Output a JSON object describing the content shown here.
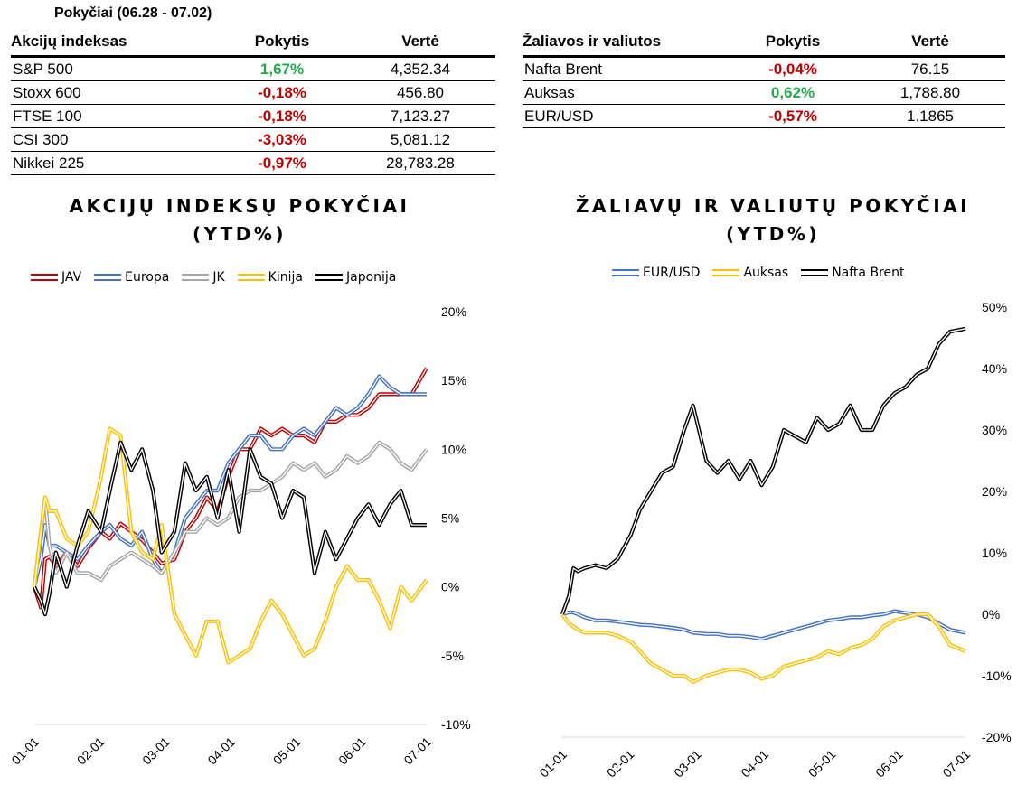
{
  "header": {
    "period": "Pokyčiai (06.28 - 07.02)"
  },
  "tables": [
    {
      "headers": [
        "Akcijų indeksas",
        "Pokytis",
        "Vertė"
      ],
      "rows": [
        {
          "name": "S&P 500",
          "change": "1,67%",
          "dir": "pos",
          "value": "4,352.34"
        },
        {
          "name": "Stoxx 600",
          "change": "-0,18%",
          "dir": "neg",
          "value": "456.80"
        },
        {
          "name": "FTSE 100",
          "change": "-0,18%",
          "dir": "neg",
          "value": "7,123.27"
        },
        {
          "name": "CSI 300",
          "change": "-3,03%",
          "dir": "neg",
          "value": "5,081.12"
        },
        {
          "name": "Nikkei 225",
          "change": "-0,97%",
          "dir": "neg",
          "value": "28,783.28"
        }
      ]
    },
    {
      "headers": [
        "Žaliavos ir valiutos",
        "Pokytis",
        "Vertė"
      ],
      "rows": [
        {
          "name": "Nafta Brent",
          "change": "-0,04%",
          "dir": "neg",
          "value": "76.15"
        },
        {
          "name": "Auksas",
          "change": "0,62%",
          "dir": "pos",
          "value": "1,788.80"
        },
        {
          "name": "EUR/USD",
          "change": "-0,57%",
          "dir": "neg",
          "value": "1.1865"
        }
      ]
    }
  ],
  "colors": {
    "positive": "#22a84a",
    "negative": "#c00000"
  },
  "chart_data": [
    {
      "type": "line",
      "title_line1": "AKCIJŲ INDEKSŲ POKYČIAI",
      "title_line2": "(YTD%)",
      "x_ticks": [
        "01-01",
        "02-01",
        "03-01",
        "04-01",
        "05-01",
        "06-01",
        "07-01"
      ],
      "y_ticks": [
        "20%",
        "15%",
        "10%",
        "5%",
        "0%",
        "-5%",
        "-10%"
      ],
      "ylim": [
        -10,
        20
      ],
      "x": [
        0,
        3,
        5,
        7,
        10,
        15,
        20,
        25,
        31,
        35,
        40,
        45,
        50,
        55,
        59,
        65,
        70,
        75,
        80,
        85,
        90,
        95,
        100,
        105,
        110,
        115,
        120,
        125,
        130,
        135,
        140,
        145,
        150,
        155,
        160,
        165,
        170,
        175,
        182
      ],
      "grid": false,
      "legend_position": "top",
      "series": [
        {
          "name": "JAV",
          "color": "#c00000",
          "values": [
            0,
            -1.5,
            2,
            2.2,
            1.5,
            2.5,
            1.5,
            2.8,
            4,
            3.5,
            4.6,
            4,
            3.4,
            2.5,
            1.7,
            2,
            4,
            5,
            6.5,
            5.5,
            8,
            10,
            10,
            11.5,
            11,
            11.5,
            11,
            11,
            10.5,
            12,
            12,
            12.5,
            12.5,
            13,
            14,
            14,
            14,
            14,
            15.9
          ]
        },
        {
          "name": "Europa",
          "color": "#4472c4",
          "values": [
            0,
            2,
            4.5,
            3,
            3,
            2.5,
            2,
            3,
            4,
            4.5,
            3.5,
            3,
            4,
            2,
            1,
            2.5,
            5,
            6,
            7,
            7,
            9,
            10,
            11,
            11,
            10,
            10,
            11,
            11.5,
            11,
            12,
            13,
            12.5,
            13,
            14,
            15.3,
            14.5,
            14,
            14,
            14
          ]
        },
        {
          "name": "JK",
          "color": "#a6a6a6",
          "values": [
            0,
            4,
            6.5,
            3,
            1,
            2.5,
            1,
            1,
            0.5,
            1.5,
            2,
            2.5,
            2,
            1.5,
            1,
            2.5,
            4,
            4,
            5,
            4.5,
            5,
            6.5,
            7,
            7,
            7.5,
            8,
            9,
            8.5,
            9,
            8,
            8.5,
            9.5,
            9,
            9.5,
            10.5,
            10,
            9,
            8.5,
            10
          ]
        },
        {
          "name": "Kinija",
          "color": "#ffc000",
          "values": [
            0,
            4,
            6.5,
            5.5,
            5.5,
            3.5,
            3,
            4,
            8,
            11.5,
            11,
            4,
            2.5,
            2,
            4.5,
            -2,
            -3.5,
            -5,
            -2.5,
            -2.5,
            -5.5,
            -5,
            -4.5,
            -2.5,
            -1,
            -2,
            -3.5,
            -5,
            -4.5,
            -2.5,
            0,
            1.5,
            0.5,
            0.5,
            -1,
            -3,
            0,
            -1,
            0.5
          ]
        },
        {
          "name": "Japonija",
          "color": "#000000",
          "values": [
            0,
            -1,
            -2,
            -0.5,
            2.5,
            0,
            3,
            5.5,
            4,
            7,
            10.5,
            8.5,
            10,
            7,
            2.5,
            4,
            9,
            7,
            8,
            5,
            8.5,
            4,
            10,
            8,
            7.5,
            5,
            7,
            6.5,
            1,
            4,
            2,
            3.5,
            5,
            6,
            4.5,
            6,
            7,
            4.5,
            4.5
          ]
        }
      ]
    },
    {
      "type": "line",
      "title_line1": "ŽALIAVŲ IR VALIUTŲ POKYČIAI",
      "title_line2": "(YTD%)",
      "x_ticks": [
        "01-01",
        "02-01",
        "03-01",
        "04-01",
        "05-01",
        "06-01",
        "07-01"
      ],
      "y_ticks": [
        "50%",
        "40%",
        "30%",
        "20%",
        "10%",
        "0%",
        "-10%",
        "-20%"
      ],
      "ylim": [
        -20,
        50
      ],
      "x": [
        0,
        3,
        5,
        7,
        10,
        15,
        20,
        25,
        31,
        35,
        40,
        45,
        50,
        55,
        59,
        65,
        70,
        75,
        80,
        85,
        90,
        95,
        100,
        105,
        110,
        115,
        120,
        125,
        130,
        135,
        140,
        145,
        150,
        155,
        160,
        165,
        170,
        175,
        182
      ],
      "grid": false,
      "legend_position": "top",
      "series": [
        {
          "name": "EUR/USD",
          "color": "#4472c4",
          "values": [
            0,
            0.3,
            0.3,
            0,
            -0.5,
            -1,
            -1,
            -1.2,
            -1.5,
            -1.7,
            -1.8,
            -2,
            -2.2,
            -2.5,
            -3,
            -3.2,
            -3.2,
            -3.5,
            -3.5,
            -3.7,
            -4,
            -3.5,
            -3,
            -2.5,
            -2,
            -1.5,
            -1,
            -0.8,
            -0.5,
            -0.5,
            -0.2,
            0,
            0.5,
            0.2,
            0,
            -0.5,
            -1.5,
            -2.5,
            -3
          ]
        },
        {
          "name": "Auksas",
          "color": "#ffc000",
          "values": [
            0,
            -1.5,
            -2,
            -2.5,
            -3,
            -3,
            -3,
            -3.5,
            -4.5,
            -6,
            -8,
            -9,
            -10,
            -10,
            -11,
            -10,
            -9.5,
            -9,
            -9,
            -9.5,
            -10.5,
            -10,
            -8.5,
            -8,
            -7.5,
            -7,
            -6,
            -6.5,
            -5.5,
            -5,
            -4,
            -2,
            -1,
            -0.5,
            0,
            0,
            -2,
            -5,
            -6
          ]
        },
        {
          "name": "Nafta Brent",
          "color": "#000000",
          "values": [
            0,
            3,
            7.5,
            7,
            7.5,
            8,
            7.5,
            9,
            13,
            17,
            20,
            23,
            24,
            30,
            34,
            25,
            23,
            25,
            22,
            25,
            21,
            24,
            30,
            29,
            28,
            32,
            30,
            31,
            34,
            30,
            30,
            34,
            36,
            37,
            39,
            40,
            44,
            46,
            46.5
          ]
        }
      ]
    }
  ]
}
